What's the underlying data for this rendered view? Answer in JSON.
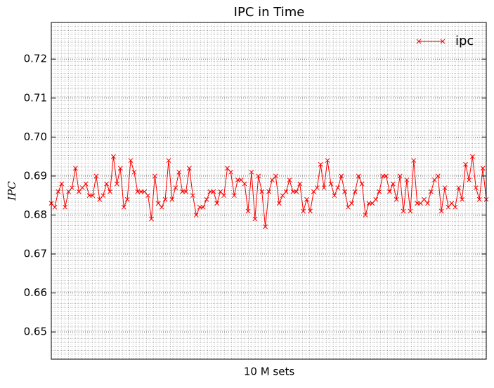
{
  "chart_data": {
    "type": "line",
    "title": "IPC in Time",
    "xlabel": "10 M sets",
    "ylabel": "IPC",
    "series": [
      {
        "name": "ipc",
        "color": "#ff0000",
        "values": [
          0.683,
          0.682,
          0.686,
          0.688,
          0.682,
          0.686,
          0.687,
          0.692,
          0.686,
          0.687,
          0.688,
          0.685,
          0.685,
          0.69,
          0.684,
          0.685,
          0.688,
          0.686,
          0.695,
          0.688,
          0.692,
          0.682,
          0.684,
          0.694,
          0.691,
          0.686,
          0.686,
          0.686,
          0.685,
          0.679,
          0.69,
          0.683,
          0.682,
          0.684,
          0.694,
          0.684,
          0.687,
          0.691,
          0.686,
          0.686,
          0.692,
          0.685,
          0.68,
          0.682,
          0.682,
          0.684,
          0.686,
          0.686,
          0.683,
          0.686,
          0.685,
          0.692,
          0.691,
          0.685,
          0.689,
          0.689,
          0.688,
          0.681,
          0.691,
          0.679,
          0.69,
          0.686,
          0.677,
          0.686,
          0.689,
          0.69,
          0.683,
          0.685,
          0.686,
          0.689,
          0.686,
          0.686,
          0.688,
          0.681,
          0.684,
          0.681,
          0.686,
          0.687,
          0.693,
          0.687,
          0.694,
          0.688,
          0.685,
          0.687,
          0.69,
          0.686,
          0.682,
          0.683,
          0.686,
          0.69,
          0.688,
          0.68,
          0.683,
          0.683,
          0.684,
          0.686,
          0.69,
          0.69,
          0.686,
          0.688,
          0.684,
          0.69,
          0.681,
          0.689,
          0.681,
          0.694,
          0.683,
          0.683,
          0.684,
          0.683,
          0.686,
          0.689,
          0.69,
          0.681,
          0.687,
          0.682,
          0.683,
          0.682,
          0.687,
          0.684,
          0.693,
          0.689,
          0.695,
          0.687,
          0.684,
          0.692,
          0.684
        ]
      }
    ],
    "ylim": [
      0.643,
      0.7294
    ],
    "yticks": [
      0.65,
      0.66,
      0.67,
      0.68,
      0.69,
      {
        "value": 0.7,
        "label": "0.70"
      },
      0.71,
      0.72
    ],
    "grid": true,
    "legend": "upper right"
  }
}
